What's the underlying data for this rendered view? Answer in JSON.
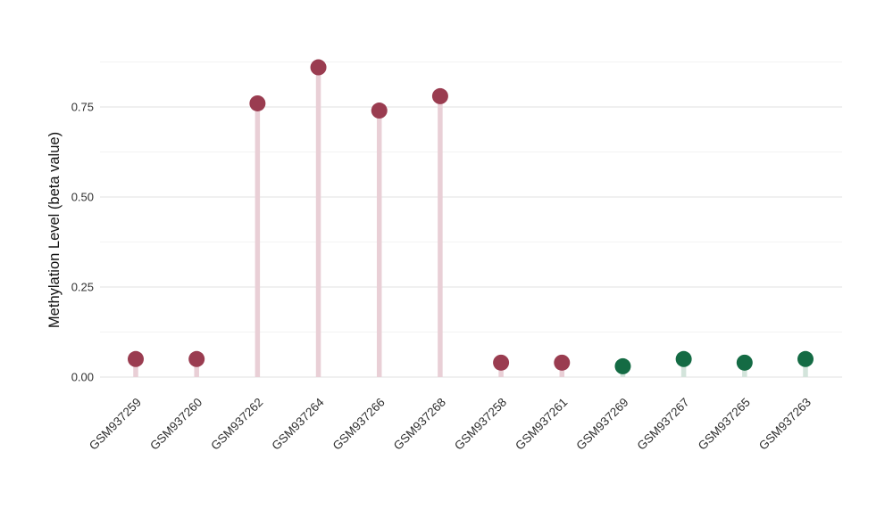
{
  "chart_data": {
    "type": "scatter",
    "variant": "lollipop",
    "title": "",
    "xlabel": "",
    "ylabel": "Methylation Level (beta value)",
    "categories": [
      "GSM937259",
      "GSM937260",
      "GSM937262",
      "GSM937264",
      "GSM937266",
      "GSM937268",
      "GSM937258",
      "GSM937261",
      "GSM937269",
      "GSM937267",
      "GSM937265",
      "GSM937263"
    ],
    "values": [
      0.05,
      0.05,
      0.76,
      0.86,
      0.74,
      0.78,
      0.04,
      0.04,
      0.03,
      0.05,
      0.04,
      0.05
    ],
    "groups": [
      "maroon",
      "maroon",
      "maroon",
      "maroon",
      "maroon",
      "maroon",
      "maroon",
      "maroon",
      "green",
      "green",
      "green",
      "green"
    ],
    "ylim": [
      0,
      0.95
    ],
    "yticks": [
      0,
      0.25,
      0.5,
      0.75
    ],
    "ytick_labels": [
      "0.00",
      "0.25",
      "0.50",
      "0.75"
    ],
    "minor_gridlines": [
      0.125,
      0.375,
      0.625,
      0.875
    ],
    "grid": "horizontal major+minor, no axis lines",
    "legend_position": "none",
    "colors": {
      "maroon_point": "#9a3c50",
      "maroon_stem": "#e9cfd6",
      "green_point": "#146b44",
      "green_stem": "#d3e4db",
      "grid_major": "#e8e8e8",
      "grid_minor": "#f3f3f3",
      "tick_text": "#303030",
      "axis_title_text": "#111111",
      "background": "#ffffff"
    }
  }
}
